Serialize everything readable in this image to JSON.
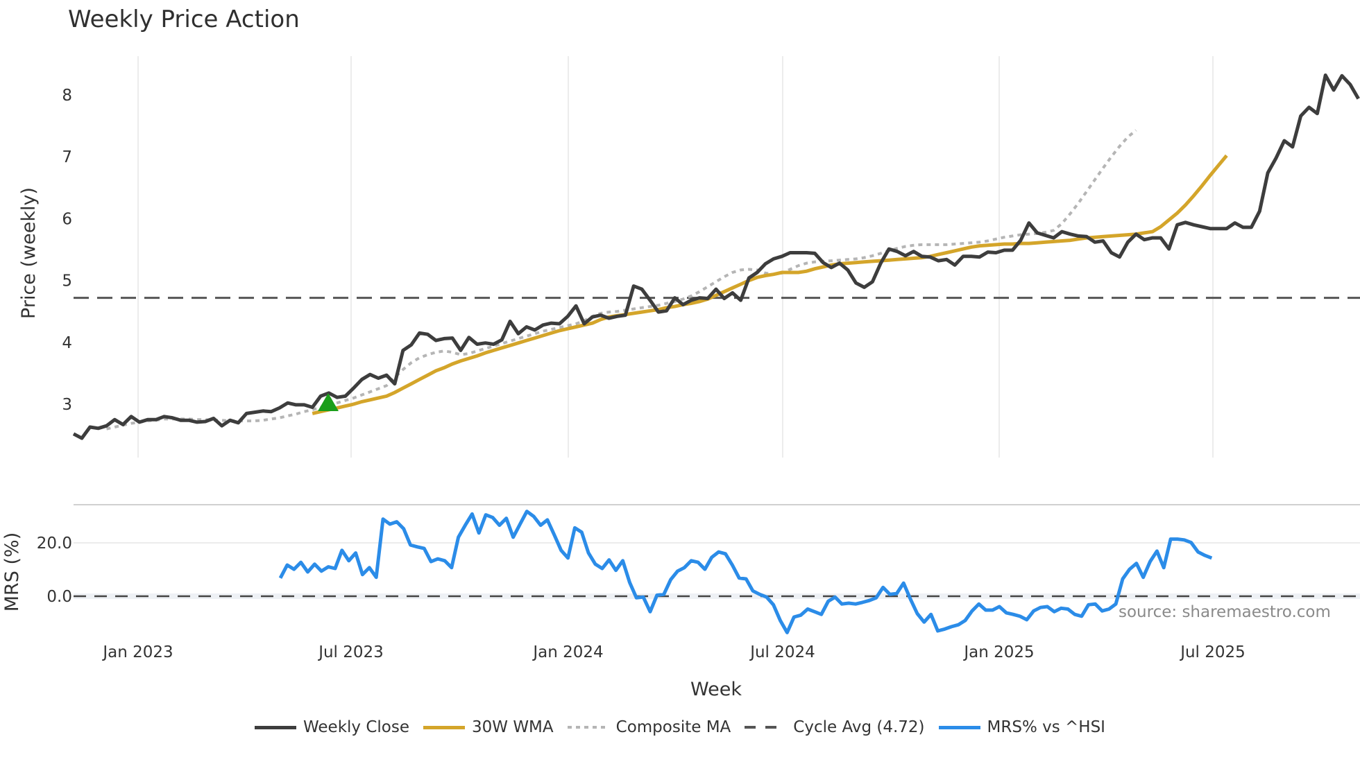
{
  "header": {
    "title": "Weekly Price Action"
  },
  "legend": {
    "items": [
      {
        "label": "Weekly Close",
        "color": "#3d3d3d",
        "style": "solid"
      },
      {
        "label": "30W WMA",
        "color": "#d4a52a",
        "style": "solid"
      },
      {
        "label": "Composite MA",
        "color": "#b5b5b5",
        "style": "dotted"
      },
      {
        "label": "Cycle Avg (4.72)",
        "color": "#555555",
        "style": "dashed"
      },
      {
        "label": "MRS% vs ^HSI",
        "color": "#2b8ce8",
        "style": "solid"
      }
    ]
  },
  "watermark": "source: sharemaestro.com",
  "chart_data": [
    {
      "type": "line",
      "title": "Weekly Price Action",
      "xlabel": "Week",
      "ylabel": "Price (weekly)",
      "ylim": [
        2.2,
        8.6
      ],
      "yticks": [
        3,
        4,
        5,
        6,
        7,
        8
      ],
      "xticks": [
        "Jan 2023",
        "Jul 2023",
        "Jan 2024",
        "Jul 2024",
        "Jan 2025",
        "Jul 2025"
      ],
      "x_start": "2022-11-07",
      "x_step": "1 week",
      "grid": true,
      "legend_position": "bottom",
      "reference_lines": [
        {
          "name": "Cycle Avg",
          "value": 4.72,
          "style": "dashed"
        }
      ],
      "markers": [
        {
          "type": "triangle-up",
          "color": "#1a9e1a",
          "week_index": 31,
          "value": 3.0,
          "label": "buy signal"
        }
      ],
      "series": [
        {
          "name": "Weekly Close",
          "start_index": 0,
          "values": [
            2.52,
            2.45,
            2.63,
            2.61,
            2.65,
            2.75,
            2.67,
            2.8,
            2.71,
            2.75,
            2.75,
            2.8,
            2.78,
            2.74,
            2.74,
            2.71,
            2.72,
            2.77,
            2.65,
            2.74,
            2.7,
            2.85,
            2.87,
            2.89,
            2.88,
            2.94,
            3.02,
            2.99,
            2.99,
            2.95,
            3.13,
            3.18,
            3.11,
            3.13,
            3.26,
            3.4,
            3.48,
            3.42,
            3.47,
            3.33,
            3.87,
            3.96,
            4.15,
            4.13,
            4.03,
            4.06,
            4.07,
            3.87,
            4.08,
            3.97,
            3.99,
            3.97,
            4.04,
            4.34,
            4.14,
            4.25,
            4.2,
            4.28,
            4.31,
            4.3,
            4.42,
            4.59,
            4.3,
            4.41,
            4.44,
            4.39,
            4.42,
            4.44,
            4.91,
            4.86,
            4.68,
            4.49,
            4.51,
            4.72,
            4.61,
            4.68,
            4.72,
            4.71,
            4.86,
            4.71,
            4.8,
            4.68,
            5.04,
            5.13,
            5.27,
            5.35,
            5.39,
            5.45,
            5.45,
            5.45,
            5.44,
            5.29,
            5.21,
            5.28,
            5.17,
            4.96,
            4.89,
            4.98,
            5.28,
            5.51,
            5.47,
            5.4,
            5.47,
            5.39,
            5.38,
            5.32,
            5.34,
            5.25,
            5.39,
            5.39,
            5.38,
            5.46,
            5.45,
            5.49,
            5.49,
            5.65,
            5.93,
            5.77,
            5.73,
            5.69,
            5.79,
            5.75,
            5.72,
            5.71,
            5.62,
            5.64,
            5.45,
            5.38,
            5.62,
            5.75,
            5.66,
            5.69,
            5.69,
            5.51,
            5.9,
            5.94,
            5.9,
            5.87,
            5.84,
            5.84,
            5.84,
            5.93,
            5.86,
            5.86,
            6.12,
            6.74,
            6.98,
            7.26,
            7.16,
            7.66,
            7.8,
            7.7,
            8.32,
            8.08,
            8.31,
            8.17,
            7.94
          ]
        },
        {
          "name": "30W WMA",
          "start_index": 29,
          "values": [
            2.85,
            2.88,
            2.91,
            2.94,
            2.97,
            3.0,
            3.04,
            3.07,
            3.1,
            3.13,
            3.19,
            3.26,
            3.33,
            3.4,
            3.47,
            3.54,
            3.59,
            3.65,
            3.7,
            3.74,
            3.78,
            3.83,
            3.87,
            3.91,
            3.95,
            3.99,
            4.03,
            4.07,
            4.11,
            4.15,
            4.19,
            4.22,
            4.25,
            4.28,
            4.31,
            4.37,
            4.41,
            4.43,
            4.45,
            4.47,
            4.49,
            4.51,
            4.53,
            4.56,
            4.58,
            4.61,
            4.63,
            4.66,
            4.7,
            4.76,
            4.82,
            4.88,
            4.94,
            5.0,
            5.05,
            5.08,
            5.1,
            5.13,
            5.13,
            5.13,
            5.15,
            5.19,
            5.22,
            5.25,
            5.27,
            5.28,
            5.29,
            5.3,
            5.31,
            5.32,
            5.33,
            5.34,
            5.35,
            5.36,
            5.37,
            5.39,
            5.42,
            5.45,
            5.48,
            5.51,
            5.54,
            5.56,
            5.57,
            5.58,
            5.59,
            5.59,
            5.6,
            5.6,
            5.61,
            5.62,
            5.63,
            5.64,
            5.65,
            5.67,
            5.69,
            5.7,
            5.71,
            5.72,
            5.73,
            5.74,
            5.75,
            5.77,
            5.79,
            5.87,
            5.98,
            6.09,
            6.22,
            6.37,
            6.53,
            6.7,
            6.86,
            7.02
          ]
        },
        {
          "name": "Composite MA",
          "start_index": 4,
          "values": [
            2.6,
            2.63,
            2.66,
            2.69,
            2.71,
            2.73,
            2.74,
            2.76,
            2.76,
            2.76,
            2.76,
            2.75,
            2.75,
            2.74,
            2.74,
            2.73,
            2.73,
            2.73,
            2.73,
            2.74,
            2.76,
            2.78,
            2.81,
            2.84,
            2.88,
            2.91,
            2.95,
            2.98,
            3.02,
            3.06,
            3.1,
            3.15,
            3.2,
            3.25,
            3.3,
            3.43,
            3.56,
            3.67,
            3.75,
            3.8,
            3.84,
            3.86,
            3.84,
            3.8,
            3.82,
            3.86,
            3.9,
            3.94,
            3.98,
            4.02,
            4.06,
            4.1,
            4.14,
            4.18,
            4.21,
            4.24,
            4.27,
            4.3,
            4.35,
            4.42,
            4.47,
            4.49,
            4.5,
            4.52,
            4.54,
            4.56,
            4.58,
            4.6,
            4.63,
            4.66,
            4.7,
            4.75,
            4.82,
            4.9,
            4.98,
            5.06,
            5.13,
            5.17,
            5.18,
            5.17,
            5.12,
            5.1,
            5.12,
            5.18,
            5.24,
            5.28,
            5.3,
            5.31,
            5.32,
            5.33,
            5.34,
            5.35,
            5.37,
            5.4,
            5.44,
            5.48,
            5.52,
            5.55,
            5.57,
            5.58,
            5.58,
            5.58,
            5.58,
            5.59,
            5.6,
            5.61,
            5.62,
            5.64,
            5.67,
            5.7,
            5.72,
            5.74,
            5.75,
            5.76,
            5.78,
            5.81,
            5.92,
            6.08,
            6.25,
            6.44,
            6.63,
            6.82,
            7.0,
            7.17,
            7.32,
            7.43
          ]
        }
      ]
    },
    {
      "type": "line",
      "ylabel": "MRS (%)",
      "ylim": [
        -16,
        38
      ],
      "yticks": [
        0.0,
        20.0
      ],
      "ytick_labels": [
        "0.0",
        "20.0"
      ],
      "reference_lines": [
        {
          "name": "zero",
          "value": 0,
          "style": "dashed"
        }
      ],
      "series": [
        {
          "name": "MRS% vs ^HSI",
          "start_index": 25,
          "values": [
            6.8,
            11.7,
            10.1,
            12.7,
            9.1,
            12.0,
            9.4,
            11.0,
            10.4,
            17.2,
            13.3,
            16.2,
            8.1,
            10.7,
            7.1,
            28.9,
            27.0,
            27.9,
            25.3,
            19.2,
            18.5,
            17.9,
            13.0,
            14.0,
            13.3,
            10.7,
            22.1,
            26.6,
            30.8,
            23.7,
            30.5,
            29.5,
            26.6,
            29.2,
            22.1,
            27.0,
            31.8,
            29.9,
            26.6,
            28.6,
            23.0,
            17.2,
            14.3,
            25.6,
            24.0,
            16.2,
            12.0,
            10.4,
            13.6,
            9.7,
            13.3,
            5.2,
            -0.6,
            -0.3,
            -5.8,
            0.4,
            0.7,
            6.2,
            9.4,
            10.7,
            13.3,
            12.7,
            10.1,
            14.6,
            16.6,
            15.9,
            11.7,
            6.8,
            6.5,
            2.0,
            0.7,
            -0.3,
            -3.2,
            -9.1,
            -13.6,
            -7.8,
            -7.1,
            -4.8,
            -5.8,
            -6.8,
            -1.9,
            -0.3,
            -2.9,
            -2.6,
            -2.9,
            -2.3,
            -1.6,
            -0.6,
            3.3,
            0.7,
            1.0,
            4.9,
            -1.0,
            -6.5,
            -9.7,
            -6.8,
            -13.0,
            -12.3,
            -11.4,
            -10.7,
            -9.1,
            -5.5,
            -2.9,
            -5.2,
            -5.2,
            -3.9,
            -6.2,
            -6.8,
            -7.5,
            -8.8,
            -5.5,
            -4.2,
            -3.9,
            -5.8,
            -4.5,
            -4.8,
            -6.8,
            -7.5,
            -3.2,
            -2.9,
            -5.5,
            -4.8,
            -2.9,
            6.5,
            10.1,
            12.3,
            7.1,
            13.0,
            16.9,
            10.7,
            21.4,
            21.4,
            21.1,
            20.1,
            16.6,
            15.3,
            14.3
          ]
        }
      ]
    }
  ]
}
